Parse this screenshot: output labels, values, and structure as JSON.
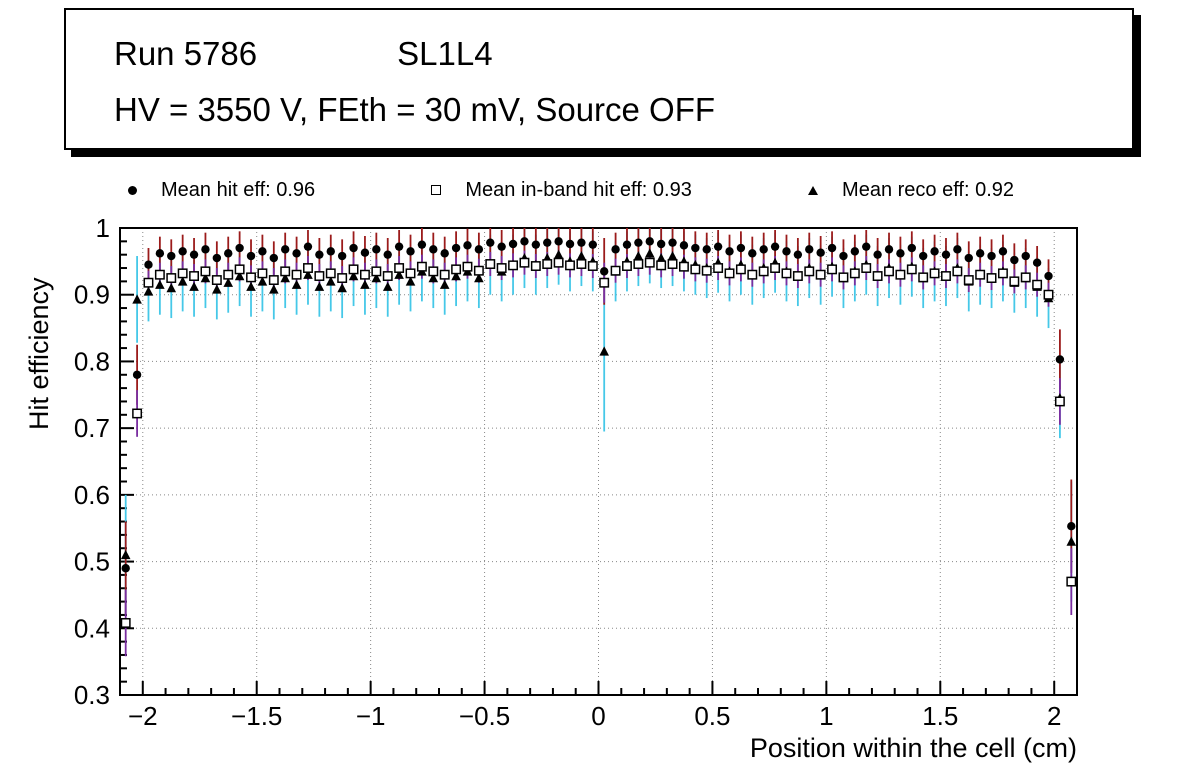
{
  "title_box": {
    "run": "Run 5786",
    "chamber": "SL1L4",
    "conditions": "HV = 3550 V, FEth = 30 mV, Source OFF"
  },
  "legend": {
    "items": [
      {
        "marker": "filled-circle",
        "label": "Mean hit  eff: 0.96"
      },
      {
        "marker": "open-square",
        "label": "Mean in-band hit eff: 0.93"
      },
      {
        "marker": "filled-triangle",
        "label": "Mean reco eff: 0.92"
      }
    ]
  },
  "chart_data": {
    "type": "scatter",
    "title": "",
    "xlabel": "Position within the cell (cm)",
    "ylabel": "Hit efficiency",
    "xlim": [
      -2.1,
      2.1
    ],
    "ylim": [
      0.3,
      1.0
    ],
    "x_ticks": [
      -2,
      -1.5,
      -1,
      -0.5,
      0,
      0.5,
      1,
      1.5,
      2
    ],
    "y_ticks": [
      0.3,
      0.4,
      0.5,
      0.6,
      0.7,
      0.8,
      0.9,
      1
    ],
    "x_minor_step": 0.1,
    "y_minor_step": 0.02,
    "grid": "dotted",
    "legend_position": "top",
    "x": [
      -2.075,
      -2.025,
      -1.975,
      -1.925,
      -1.875,
      -1.825,
      -1.775,
      -1.725,
      -1.675,
      -1.625,
      -1.575,
      -1.525,
      -1.475,
      -1.425,
      -1.375,
      -1.325,
      -1.275,
      -1.225,
      -1.175,
      -1.125,
      -1.075,
      -1.025,
      -0.975,
      -0.925,
      -0.875,
      -0.825,
      -0.775,
      -0.725,
      -0.675,
      -0.625,
      -0.575,
      -0.525,
      -0.475,
      -0.425,
      -0.375,
      -0.325,
      -0.275,
      -0.225,
      -0.175,
      -0.125,
      -0.075,
      -0.025,
      0.025,
      0.075,
      0.125,
      0.175,
      0.225,
      0.275,
      0.325,
      0.375,
      0.425,
      0.475,
      0.525,
      0.575,
      0.625,
      0.675,
      0.725,
      0.775,
      0.825,
      0.875,
      0.925,
      0.975,
      1.025,
      1.075,
      1.125,
      1.175,
      1.225,
      1.275,
      1.325,
      1.375,
      1.425,
      1.475,
      1.525,
      1.575,
      1.625,
      1.675,
      1.725,
      1.775,
      1.825,
      1.875,
      1.925,
      1.975,
      2.025,
      2.075
    ],
    "series": [
      {
        "name": "Mean hit eff",
        "mean": 0.96,
        "marker": "filled-circle",
        "marker_color": "#000000",
        "error_color": "#9b1b1b",
        "values": [
          0.49,
          0.78,
          0.945,
          0.962,
          0.958,
          0.965,
          0.96,
          0.968,
          0.955,
          0.962,
          0.97,
          0.958,
          0.965,
          0.955,
          0.968,
          0.962,
          0.972,
          0.96,
          0.965,
          0.958,
          0.97,
          0.963,
          0.968,
          0.96,
          0.972,
          0.965,
          0.975,
          0.968,
          0.962,
          0.97,
          0.974,
          0.968,
          0.978,
          0.972,
          0.976,
          0.98,
          0.975,
          0.978,
          0.98,
          0.976,
          0.978,
          0.975,
          0.935,
          0.968,
          0.975,
          0.978,
          0.98,
          0.976,
          0.978,
          0.974,
          0.97,
          0.968,
          0.972,
          0.965,
          0.97,
          0.962,
          0.968,
          0.972,
          0.965,
          0.96,
          0.968,
          0.963,
          0.97,
          0.958,
          0.965,
          0.972,
          0.96,
          0.968,
          0.962,
          0.97,
          0.958,
          0.965,
          0.96,
          0.968,
          0.955,
          0.962,
          0.958,
          0.965,
          0.952,
          0.958,
          0.948,
          0.928,
          0.803,
          0.553
        ],
        "errors": {
          "default": 0.025,
          "by_index": {
            "0": 0.07,
            "1": 0.045,
            "42": 0.05,
            "82": 0.045,
            "83": 0.07
          }
        }
      },
      {
        "name": "Mean in-band hit eff",
        "mean": 0.93,
        "marker": "open-square",
        "marker_color": "#000000",
        "error_color": "#7a2ea0",
        "values": [
          0.408,
          0.722,
          0.918,
          0.93,
          0.925,
          0.932,
          0.928,
          0.935,
          0.922,
          0.93,
          0.938,
          0.926,
          0.932,
          0.922,
          0.935,
          0.93,
          0.94,
          0.928,
          0.932,
          0.925,
          0.938,
          0.93,
          0.935,
          0.928,
          0.94,
          0.932,
          0.942,
          0.935,
          0.93,
          0.938,
          0.942,
          0.936,
          0.946,
          0.94,
          0.944,
          0.948,
          0.943,
          0.946,
          0.948,
          0.944,
          0.946,
          0.943,
          0.918,
          0.936,
          0.943,
          0.946,
          0.948,
          0.944,
          0.946,
          0.942,
          0.938,
          0.936,
          0.94,
          0.932,
          0.938,
          0.93,
          0.935,
          0.94,
          0.932,
          0.928,
          0.935,
          0.93,
          0.938,
          0.926,
          0.932,
          0.94,
          0.928,
          0.935,
          0.93,
          0.938,
          0.926,
          0.932,
          0.928,
          0.935,
          0.922,
          0.93,
          0.925,
          0.932,
          0.92,
          0.926,
          0.915,
          0.9,
          0.74,
          0.47
        ],
        "errors": {
          "default": 0.018,
          "by_index": {
            "0": 0.05,
            "1": 0.035,
            "42": 0.03,
            "82": 0.035,
            "83": 0.05
          }
        }
      },
      {
        "name": "Mean reco eff",
        "mean": 0.92,
        "marker": "filled-triangle",
        "marker_color": "#000000",
        "error_color": "#45c8e8",
        "values": [
          0.51,
          0.893,
          0.905,
          0.915,
          0.91,
          0.92,
          0.912,
          0.925,
          0.908,
          0.918,
          0.928,
          0.912,
          0.92,
          0.908,
          0.925,
          0.915,
          0.93,
          0.912,
          0.92,
          0.91,
          0.928,
          0.915,
          0.925,
          0.912,
          0.93,
          0.92,
          0.935,
          0.925,
          0.915,
          0.928,
          0.935,
          0.925,
          0.945,
          0.935,
          0.945,
          0.955,
          0.945,
          0.955,
          0.96,
          0.95,
          0.958,
          0.95,
          0.815,
          0.935,
          0.95,
          0.958,
          0.962,
          0.955,
          0.958,
          0.95,
          0.945,
          0.94,
          0.948,
          0.935,
          0.945,
          0.93,
          0.94,
          0.948,
          0.935,
          0.928,
          0.94,
          0.93,
          0.942,
          0.925,
          0.935,
          0.945,
          0.928,
          0.94,
          0.93,
          0.942,
          0.925,
          0.935,
          0.928,
          0.94,
          0.92,
          0.93,
          0.925,
          0.935,
          0.918,
          0.925,
          0.912,
          0.895,
          0.745,
          0.53
        ],
        "errors": {
          "default": 0.045,
          "by_index": {
            "0": 0.09,
            "1": 0.065,
            "42": 0.12,
            "82": 0.06,
            "83": 0.09
          }
        }
      }
    ]
  }
}
